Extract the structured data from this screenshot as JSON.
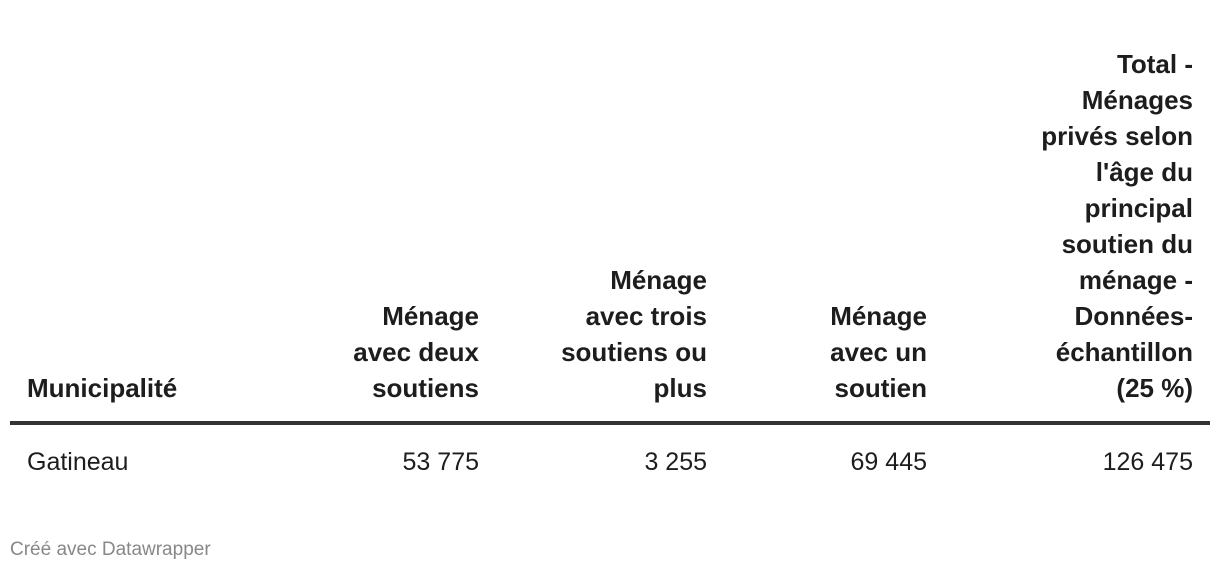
{
  "table": {
    "header": [
      [
        "Municipalité"
      ],
      [
        "Ménage",
        "avec deux",
        "soutiens"
      ],
      [
        "Ménage",
        "avec trois",
        "soutiens ou",
        "plus"
      ],
      [
        "Ménage",
        "avec un",
        "soutien"
      ],
      [
        "Total -",
        "Ménages",
        "privés selon",
        "l'âge du",
        "principal",
        "soutien du",
        "ménage -",
        "Données-",
        "échantillon",
        "(25 %)"
      ]
    ],
    "rows": [
      [
        "Gatineau",
        "53 775",
        "3 255",
        "69 445",
        "126 475"
      ]
    ]
  },
  "footer": "Créé avec Datawrapper"
}
